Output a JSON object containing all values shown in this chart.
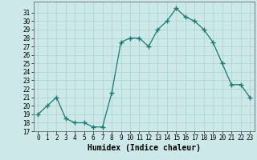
{
  "x": [
    0,
    1,
    2,
    3,
    4,
    5,
    6,
    7,
    8,
    9,
    10,
    11,
    12,
    13,
    14,
    15,
    16,
    17,
    18,
    19,
    20,
    21,
    22,
    23
  ],
  "y": [
    19,
    20,
    21,
    18.5,
    18,
    18,
    17.5,
    17.5,
    21.5,
    27.5,
    28,
    28,
    27,
    29,
    30,
    31.5,
    30.5,
    30,
    29,
    27.5,
    25,
    22.5,
    22.5,
    21
  ],
  "xlabel": "Humidex (Indice chaleur)",
  "xlim": [
    -0.5,
    23.5
  ],
  "ylim": [
    17,
    32
  ],
  "yticks": [
    17,
    18,
    19,
    20,
    21,
    22,
    23,
    24,
    25,
    26,
    27,
    28,
    29,
    30,
    31
  ],
  "xticks": [
    0,
    1,
    2,
    3,
    4,
    5,
    6,
    7,
    8,
    9,
    10,
    11,
    12,
    13,
    14,
    15,
    16,
    17,
    18,
    19,
    20,
    21,
    22,
    23
  ],
  "line_color": "#1a7a6e",
  "marker": "+",
  "bg_color": "#cce8e8",
  "grid_color": "#aad0d0",
  "tick_fontsize": 5.5,
  "xlabel_fontsize": 7
}
